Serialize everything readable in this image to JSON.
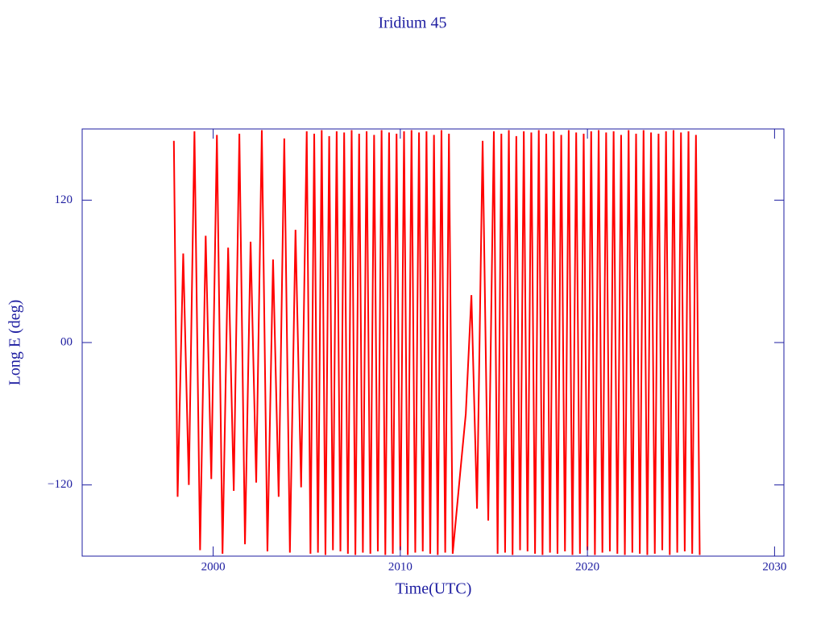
{
  "chart_data": {
    "type": "line",
    "title": "Iridium 45",
    "x_label": "Time(UTC)",
    "y_label": "Long E (deg)",
    "color": "#ff0000",
    "xlim": [
      1993,
      2030.5
    ],
    "xticks": [
      2000,
      2010,
      2020,
      2030
    ],
    "ylim": [
      -180,
      180
    ],
    "yticks": [
      {
        "value": -120,
        "label": "−120"
      },
      {
        "value": 0,
        "label": "00"
      },
      120
    ],
    "x": [
      1997.9,
      1998.1,
      1998.4,
      1998.7,
      1999.0,
      1999.3,
      1999.6,
      1999.9,
      2000.2,
      2000.5,
      2000.8,
      2001.1,
      2001.4,
      2001.7,
      2002.0,
      2002.3,
      2002.6,
      2002.9,
      2003.2,
      2003.5,
      2003.8,
      2004.1,
      2004.4,
      2004.7,
      2005,
      2005.2,
      2005.4,
      2005.6,
      2005.8,
      2006,
      2006.2,
      2006.4,
      2006.6,
      2006.8,
      2007,
      2007.2,
      2007.4,
      2007.6,
      2007.8,
      2008,
      2008.2,
      2008.4,
      2008.6,
      2008.8,
      2009,
      2009.2,
      2009.4,
      2009.6,
      2009.8,
      2010,
      2010.2,
      2010.4,
      2010.6,
      2010.8,
      2011,
      2011.2,
      2011.4,
      2011.6,
      2011.8,
      2012,
      2012.2,
      2012.4,
      2012.6,
      2012.8,
      2013.2,
      2013.5,
      2013.8,
      2014.1,
      2014.4,
      2014.7,
      2015,
      2015.2,
      2015.4,
      2015.6,
      2015.8,
      2016,
      2016.2,
      2016.4,
      2016.6,
      2016.8,
      2017,
      2017.2,
      2017.4,
      2017.6,
      2017.8,
      2018,
      2018.2,
      2018.4,
      2018.6,
      2018.8,
      2019,
      2019.2,
      2019.4,
      2019.6,
      2019.8,
      2020,
      2020.2,
      2020.4,
      2020.6,
      2020.8,
      2021,
      2021.2,
      2021.4,
      2021.6,
      2021.8,
      2022,
      2022.2,
      2022.4,
      2022.6,
      2022.8,
      2023,
      2023.2,
      2023.4,
      2023.6,
      2023.8,
      2024,
      2024.2,
      2024.4,
      2024.6,
      2024.8,
      2025,
      2025.2,
      2025.4,
      2025.6,
      2025.8,
      2026
    ],
    "values": [
      170,
      -130,
      75,
      -120,
      178,
      -175,
      90,
      -115,
      175,
      -178,
      80,
      -125,
      176,
      -170,
      85,
      -118,
      179,
      -176,
      70,
      -130,
      172,
      -177,
      95,
      -122,
      178,
      -178,
      176,
      -177,
      179,
      -179,
      174,
      -175,
      178,
      -176,
      177,
      -178,
      179,
      -179,
      176,
      -177,
      178,
      -178,
      175,
      -176,
      179,
      -179,
      177,
      -178,
      176,
      -175,
      178,
      -179,
      179,
      -177,
      177,
      -176,
      178,
      -178,
      175,
      -179,
      179,
      -177,
      176,
      -178,
      -110,
      -60,
      40,
      -140,
      170,
      -150,
      178,
      -178,
      176,
      -177,
      179,
      -179,
      174,
      -175,
      178,
      -176,
      177,
      -178,
      179,
      -179,
      176,
      -177,
      178,
      -178,
      175,
      -176,
      179,
      -179,
      177,
      -178,
      176,
      -175,
      178,
      -179,
      179,
      -177,
      177,
      -176,
      178,
      -178,
      175,
      -179,
      179,
      -177,
      176,
      -178,
      179,
      -179,
      177,
      -178,
      176,
      -175,
      178,
      -179,
      179,
      -177,
      177,
      -176,
      178,
      -178,
      175,
      -179
    ]
  }
}
